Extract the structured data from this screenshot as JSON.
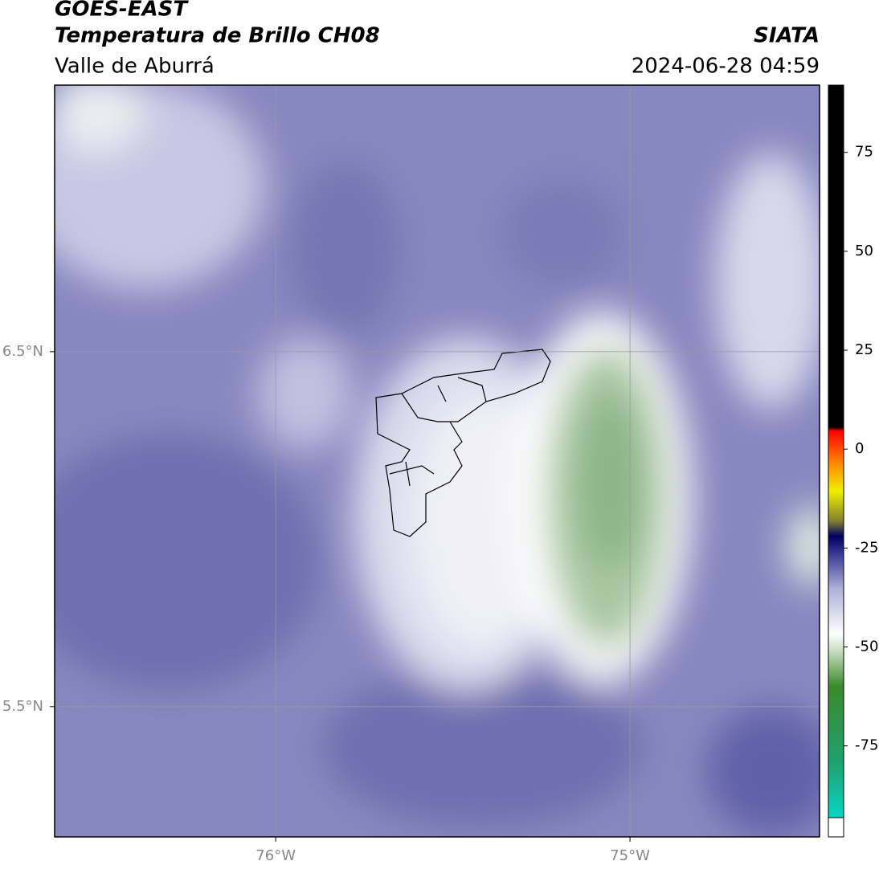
{
  "header": {
    "title": "GOES-EAST",
    "subtitle": "Temperatura de Brillo CH08",
    "source": "SIATA",
    "region": "Valle de Aburrá",
    "timestamp": "2024-06-28 04:59"
  },
  "map": {
    "xlim": [
      -76.624,
      -74.465
    ],
    "ylim": [
      5.133,
      7.251
    ],
    "xticks": [
      {
        "value": -76,
        "label": "76°W"
      },
      {
        "value": -75,
        "label": "75°W"
      }
    ],
    "yticks": [
      {
        "value": 6.5,
        "label": "6.5°N"
      },
      {
        "value": 5.5,
        "label": "5.5°N"
      }
    ],
    "grid": true
  },
  "colorbar": {
    "clim": [
      -98,
      92
    ],
    "ticks": [
      75,
      50,
      25,
      0,
      -25,
      -50,
      -75
    ]
  }
}
